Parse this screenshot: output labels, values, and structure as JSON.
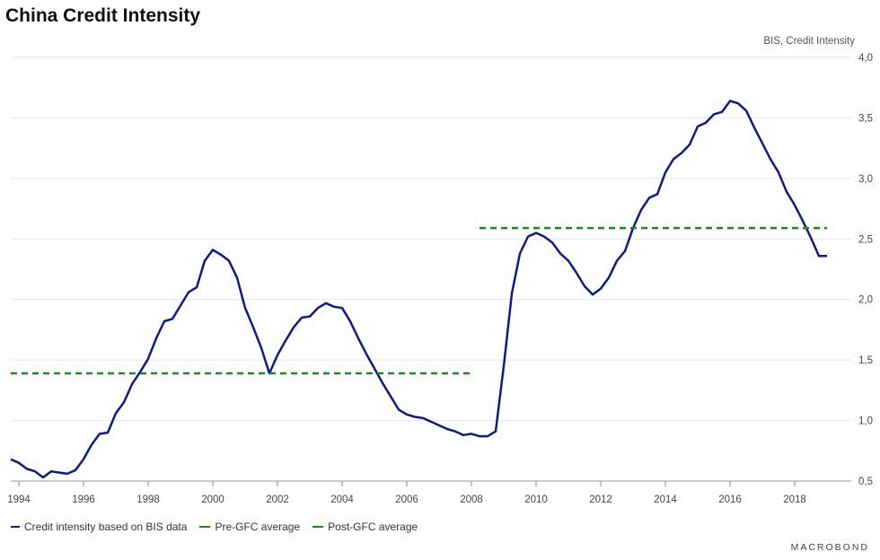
{
  "title": "China Credit Intensity",
  "source_note": "BIS, Credit Intensity",
  "brand": "MACROBOND",
  "colors": {
    "series_main": "#0d1a8a",
    "pre_gfc": "#1a8a1a",
    "post_gfc": "#1a8a1a",
    "grid": "#e6e6e6"
  },
  "legend": [
    {
      "label": "Credit intensity based on BIS data",
      "style": "solid",
      "color": "#0d1a8a"
    },
    {
      "label": "Pre-GFC average",
      "style": "dashed",
      "color": "#1a8a1a"
    },
    {
      "label": "Post-GFC average",
      "style": "dashed",
      "color": "#1a8a1a"
    }
  ],
  "chart_data": {
    "type": "line",
    "title": "China Credit Intensity",
    "xlim": [
      1993.75,
      2019.75
    ],
    "ylim": [
      0.5,
      4.0
    ],
    "y_axis_side": "right",
    "grid": true,
    "legend_position": "bottom-left",
    "x_ticks": [
      "1994",
      "1996",
      "1998",
      "2000",
      "2002",
      "2004",
      "2006",
      "2008",
      "2010",
      "2012",
      "2014",
      "2016",
      "2018"
    ],
    "y_ticks": [
      "0,5",
      "1,0",
      "1,5",
      "2,0",
      "2,5",
      "3,0",
      "3,5",
      "4,0"
    ],
    "series": [
      {
        "name": "Credit intensity based on BIS data",
        "style": "solid",
        "x": [
          1993.75,
          1994.0,
          1994.25,
          1994.5,
          1994.75,
          1995.0,
          1995.25,
          1995.5,
          1995.75,
          1996.0,
          1996.25,
          1996.5,
          1996.75,
          1997.0,
          1997.25,
          1997.5,
          1997.75,
          1998.0,
          1998.25,
          1998.5,
          1998.75,
          1999.0,
          1999.25,
          1999.5,
          1999.75,
          2000.0,
          2000.25,
          2000.5,
          2000.75,
          2001.0,
          2001.25,
          2001.5,
          2001.75,
          2002.0,
          2002.25,
          2002.5,
          2002.75,
          2003.0,
          2003.25,
          2003.5,
          2003.75,
          2004.0,
          2004.25,
          2004.5,
          2004.75,
          2005.0,
          2005.25,
          2005.5,
          2005.75,
          2006.0,
          2006.25,
          2006.5,
          2006.75,
          2007.0,
          2007.25,
          2007.5,
          2007.75,
          2008.0,
          2008.25,
          2008.5,
          2008.75,
          2009.0,
          2009.25,
          2009.5,
          2009.75,
          2010.0,
          2010.25,
          2010.5,
          2010.75,
          2011.0,
          2011.25,
          2011.5,
          2011.75,
          2012.0,
          2012.25,
          2012.5,
          2012.75,
          2013.0,
          2013.25,
          2013.5,
          2013.75,
          2014.0,
          2014.25,
          2014.5,
          2014.75,
          2015.0,
          2015.25,
          2015.5,
          2015.75,
          2016.0,
          2016.25,
          2016.5,
          2016.75,
          2017.0,
          2017.25,
          2017.5,
          2017.75,
          2018.0,
          2018.25,
          2018.5,
          2018.75,
          2019.0
        ],
        "values": [
          0.68,
          0.65,
          0.6,
          0.58,
          0.53,
          0.58,
          0.57,
          0.56,
          0.59,
          0.68,
          0.8,
          0.89,
          0.9,
          1.06,
          1.15,
          1.3,
          1.4,
          1.51,
          1.68,
          1.82,
          1.84,
          1.95,
          2.06,
          2.1,
          2.32,
          2.41,
          2.37,
          2.32,
          2.18,
          1.93,
          1.77,
          1.6,
          1.39,
          1.54,
          1.66,
          1.77,
          1.85,
          1.86,
          1.93,
          1.97,
          1.94,
          1.93,
          1.82,
          1.68,
          1.55,
          1.43,
          1.31,
          1.2,
          1.09,
          1.05,
          1.03,
          1.02,
          0.99,
          0.96,
          0.93,
          0.91,
          0.88,
          0.89,
          0.87,
          0.87,
          0.91,
          1.45,
          2.05,
          2.38,
          2.52,
          2.55,
          2.52,
          2.47,
          2.38,
          2.32,
          2.22,
          2.11,
          2.04,
          2.09,
          2.18,
          2.32,
          2.4,
          2.59,
          2.74,
          2.84,
          2.87,
          3.05,
          3.16,
          3.21,
          3.28,
          3.43,
          3.46,
          3.53,
          3.55,
          3.64,
          3.62,
          3.56,
          3.42,
          3.29,
          3.16,
          3.05,
          2.89,
          2.78,
          2.65,
          2.51,
          2.36,
          2.36
        ]
      },
      {
        "name": "Pre-GFC average",
        "style": "dashed",
        "x": [
          1993.75,
          2008.0
        ],
        "values": [
          1.39,
          1.39
        ]
      },
      {
        "name": "Post-GFC average",
        "style": "dashed",
        "x": [
          2008.25,
          2019.0
        ],
        "values": [
          2.59,
          2.59
        ]
      }
    ]
  }
}
